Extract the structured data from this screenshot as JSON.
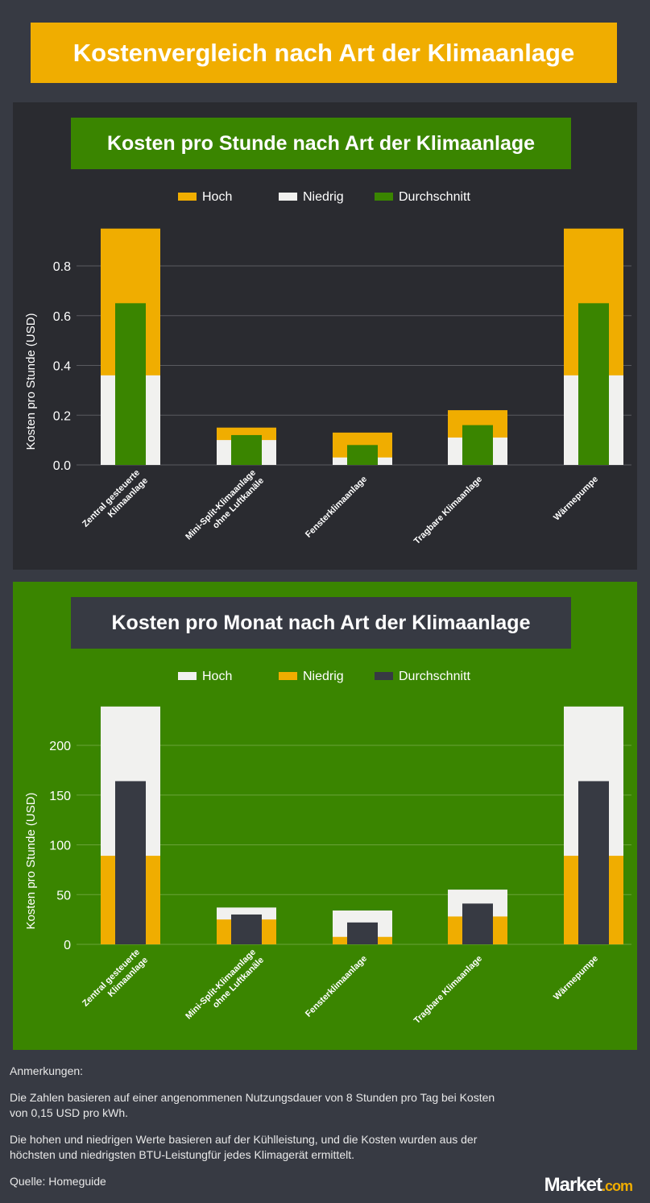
{
  "title": "Kostenvergleich nach Art der Klimaanlage",
  "chart_data": [
    {
      "type": "bar",
      "title": "Kosten pro Stunde nach Art der Klimaanlage",
      "ylabel": "Kosten pro Stunde (USD)",
      "xlabel": "",
      "categories": [
        "Zentral gesteuerte Klimaanlage",
        "Mini-Split-Klimaanlage ohne Luftkanäle",
        "Fensterklimaanlage",
        "Tragbare Klimaanlage",
        "Wärmepumpe"
      ],
      "ylim": [
        0,
        0.96
      ],
      "yticks": [
        0,
        0.2,
        0.4,
        0.6,
        0.8
      ],
      "ytick_labels": [
        "0.0",
        "0.2",
        "0.4",
        "0.6",
        "0.8"
      ],
      "grid": true,
      "legend": "top",
      "series": [
        {
          "name": "Hoch",
          "color": "#f0ad00",
          "values": [
            0.95,
            0.15,
            0.13,
            0.22,
            0.95
          ]
        },
        {
          "name": "Niedrig",
          "color": "#f1f1ef",
          "values": [
            0.36,
            0.1,
            0.03,
            0.11,
            0.36
          ]
        },
        {
          "name": "Durchschnitt",
          "color": "#3a8500",
          "values": [
            0.65,
            0.12,
            0.08,
            0.16,
            0.65
          ]
        }
      ]
    },
    {
      "type": "bar",
      "title": "Kosten pro Monat nach Art der Klimaanlage",
      "ylabel": "Kosten pro Stunde (USD)",
      "xlabel": "",
      "categories": [
        "Zentral gesteuerte Klimaanlage",
        "Mini-Split-Klimaanlage ohne Luftkanäle",
        "Fensterklimaanlage",
        "Tragbare Klimaanlage",
        "Wärmepumpe"
      ],
      "ylim": [
        0,
        240
      ],
      "yticks": [
        0,
        50,
        100,
        150,
        200
      ],
      "ytick_labels": [
        "0",
        "50",
        "100",
        "150",
        "200"
      ],
      "grid": true,
      "legend": "top",
      "series": [
        {
          "name": "Hoch",
          "color": "#f1f1ef",
          "values": [
            239,
            37,
            34,
            55,
            239
          ]
        },
        {
          "name": "Niedrig",
          "color": "#f0ad00",
          "values": [
            89,
            25,
            7.5,
            28,
            89
          ]
        },
        {
          "name": "Durchschnitt",
          "color": "#373a43",
          "values": [
            164,
            30,
            22,
            41,
            164
          ]
        }
      ]
    }
  ],
  "notes": {
    "heading": "Anmerkungen:",
    "line1": "Die Zahlen basieren auf einer angenommenen Nutzungsdauer von 8 Stunden pro Tag bei Kosten von 0,15 USD pro kWh.",
    "line2": "Die hohen und niedrigen Werte basieren auf der Kühlleistung, und die Kosten wurden aus der höchsten und niedrigsten BTU-Leistungfür jedes Klimagerät ermittelt.",
    "source": "Quelle: Homeguide"
  },
  "logo": {
    "text": "Market",
    "suffix": ".com"
  }
}
